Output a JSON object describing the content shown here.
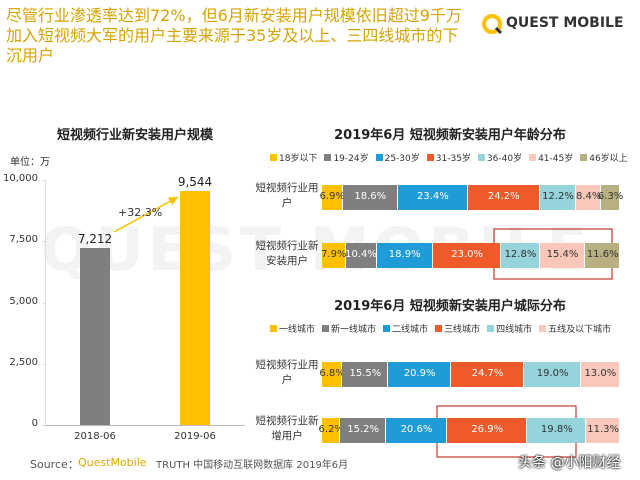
{
  "header": {
    "title": "尽管行业渗透率达到72%，但6月新安装用户规模依旧超过9千万加入短视频大军的用户主要来源于35岁及以上、三四线城市的下沉用户",
    "logo": "QUEST MOBILE"
  },
  "watermark": "QUEST MOBILE",
  "source": {
    "label": "Source：",
    "brand": "QuestMobile",
    "text": "TRUTH 中国移动互联网数据库 2019年6月"
  },
  "credit": "头条 @小阳财经",
  "chart_data": [
    {
      "type": "bar",
      "title": "短视频行业新安装用户规模",
      "unit": "单位：万",
      "categories": [
        "2018-06",
        "2019-06"
      ],
      "values": [
        7212,
        9544
      ],
      "value_labels": [
        "7,212",
        "9,544"
      ],
      "colors": [
        "#7f7f7f",
        "#ffc000"
      ],
      "annotation": "+32.3%",
      "ylim": [
        0,
        10000
      ],
      "yticks": [
        0,
        {
          "value": 2500,
          "label": "2,500"
        },
        {
          "value": 5000,
          "label": "5,000"
        },
        {
          "value": 7500,
          "label": "7,500"
        },
        {
          "value": 10000,
          "label": "10,000"
        }
      ]
    },
    {
      "type": "stacked_bar",
      "title": "2019年6月 短视频新安装用户年龄分布",
      "categories": [
        "短视频行业用户",
        "短视频行业新安装用户"
      ],
      "xlim": [
        0,
        100
      ],
      "series": [
        {
          "name": "18岁以下",
          "color": "#ffc000",
          "values": [
            6.9,
            7.9
          ],
          "value_labels": [
            "6.9%",
            "7.9%"
          ]
        },
        {
          "name": "19-24岁",
          "color": "#7f7f7f",
          "values": [
            18.6,
            10.4
          ],
          "value_labels": [
            "18.6%",
            "10.4%"
          ]
        },
        {
          "name": "25-30岁",
          "color": "#1f9bd7",
          "values": [
            23.4,
            18.9
          ],
          "value_labels": [
            "23.4%",
            "18.9%"
          ]
        },
        {
          "name": "31-35岁",
          "color": "#ef5a2a",
          "values": [
            24.2,
            23.0
          ],
          "value_labels": [
            "24.2%",
            "23.0%"
          ]
        },
        {
          "name": "36-40岁",
          "color": "#95d4da",
          "values": [
            12.2,
            12.8
          ],
          "value_labels": [
            "12.2%",
            "12.8%"
          ]
        },
        {
          "name": "41-45岁",
          "color": "#fac8ba",
          "values": [
            8.4,
            15.4
          ],
          "value_labels": [
            "8.4%",
            "15.4%"
          ]
        },
        {
          "name": "46岁以上",
          "color": "#b8b081",
          "values": [
            6.3,
            11.6
          ],
          "value_labels": [
            "6.3%",
            "11.6%"
          ]
        }
      ]
    },
    {
      "type": "stacked_bar",
      "title": "2019年6月 短视频新安装用户城际分布",
      "categories": [
        "短视频行业用户",
        "短视频行业新增用户"
      ],
      "xlim": [
        0,
        100
      ],
      "series": [
        {
          "name": "一线城市",
          "color": "#ffc000",
          "values": [
            6.8,
            6.2
          ],
          "value_labels": [
            "6.8%",
            "6.2%"
          ]
        },
        {
          "name": "新一线城市",
          "color": "#7f7f7f",
          "values": [
            15.5,
            15.2
          ],
          "value_labels": [
            "15.5%",
            "15.2%"
          ]
        },
        {
          "name": "二线城市",
          "color": "#1f9bd7",
          "values": [
            20.9,
            20.6
          ],
          "value_labels": [
            "20.9%",
            "20.6%"
          ]
        },
        {
          "name": "三线城市",
          "color": "#ef5a2a",
          "values": [
            24.7,
            26.9
          ],
          "value_labels": [
            "24.7%",
            "26.9%"
          ]
        },
        {
          "name": "四线城市",
          "color": "#95d4da",
          "values": [
            19.0,
            19.8
          ],
          "value_labels": [
            "19.0%",
            "19.8%"
          ]
        },
        {
          "name": "五线及以下城市",
          "color": "#fac8ba",
          "values": [
            13.0,
            11.3
          ],
          "value_labels": [
            "13.0%",
            "11.3%"
          ]
        }
      ]
    }
  ]
}
